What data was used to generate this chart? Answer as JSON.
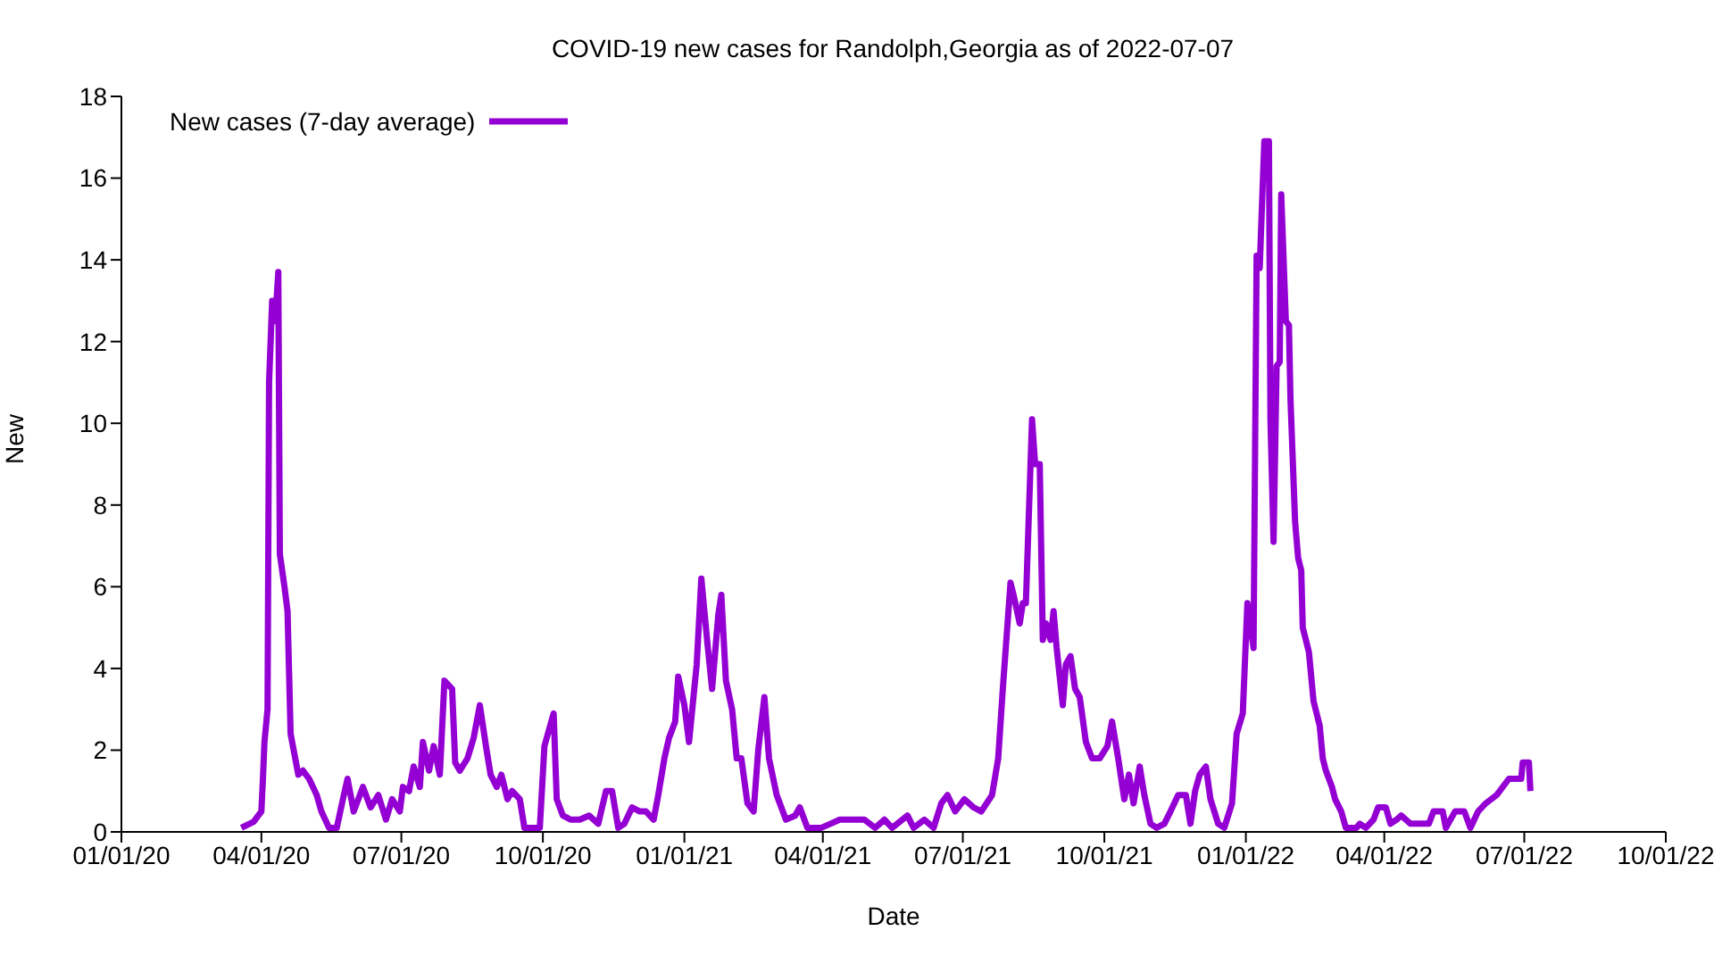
{
  "chart_data": {
    "type": "line",
    "title": "COVID-19 new cases for Randolph,Georgia as of 2022-07-07",
    "xlabel": "Date",
    "ylabel": "New",
    "legend": "top left",
    "grid": false,
    "marker": "none",
    "line_style": "solid",
    "xlim": [
      "2020-01-01",
      "2022-10-01"
    ],
    "xticks": [
      {
        "value": "2020-01-01",
        "label": "01/01/20"
      },
      {
        "value": "2020-04-01",
        "label": "04/01/20"
      },
      {
        "value": "2020-07-01",
        "label": "07/01/20"
      },
      {
        "value": "2020-10-01",
        "label": "10/01/20"
      },
      {
        "value": "2021-01-01",
        "label": "01/01/21"
      },
      {
        "value": "2021-04-01",
        "label": "04/01/21"
      },
      {
        "value": "2021-07-01",
        "label": "07/01/21"
      },
      {
        "value": "2021-10-01",
        "label": "10/01/21"
      },
      {
        "value": "2022-01-01",
        "label": "01/01/22"
      },
      {
        "value": "2022-04-01",
        "label": "04/01/22"
      },
      {
        "value": "2022-07-01",
        "label": "07/01/22"
      },
      {
        "value": "2022-10-01",
        "label": "10/01/22"
      }
    ],
    "ylim": [
      0,
      18
    ],
    "yticks": [
      0,
      2,
      4,
      6,
      8,
      10,
      12,
      14,
      16,
      18
    ],
    "series": [
      {
        "name": "New cases (7-day average)",
        "color": "#9400d3",
        "x": [
          "2020-03-19",
          "2020-03-27",
          "2020-03-30",
          "2020-04-01",
          "2020-04-02",
          "2020-04-03",
          "2020-04-05",
          "2020-04-06",
          "2020-04-08",
          "2020-04-10",
          "2020-04-12",
          "2020-04-13",
          "2020-04-16",
          "2020-04-18",
          "2020-04-20",
          "2020-04-23",
          "2020-04-25",
          "2020-04-28",
          "2020-05-02",
          "2020-05-07",
          "2020-05-10",
          "2020-05-15",
          "2020-05-20",
          "2020-05-24",
          "2020-05-27",
          "2020-05-31",
          "2020-06-06",
          "2020-06-11",
          "2020-06-16",
          "2020-06-21",
          "2020-06-25",
          "2020-06-30",
          "2020-07-02",
          "2020-07-06",
          "2020-07-09",
          "2020-07-13",
          "2020-07-15",
          "2020-07-19",
          "2020-07-22",
          "2020-07-26",
          "2020-07-29",
          "2020-08-03",
          "2020-08-05",
          "2020-08-08",
          "2020-08-13",
          "2020-08-17",
          "2020-08-21",
          "2020-08-25",
          "2020-08-28",
          "2020-09-01",
          "2020-09-04",
          "2020-09-08",
          "2020-09-11",
          "2020-09-16",
          "2020-09-19",
          "2020-09-29",
          "2020-10-02",
          "2020-10-08",
          "2020-10-10",
          "2020-10-14",
          "2020-10-19",
          "2020-10-25",
          "2020-10-31",
          "2020-11-06",
          "2020-11-11",
          "2020-11-15",
          "2020-11-19",
          "2020-11-23",
          "2020-11-28",
          "2020-12-03",
          "2020-12-07",
          "2020-12-12",
          "2020-12-15",
          "2020-12-19",
          "2020-12-22",
          "2020-12-26",
          "2020-12-28",
          "2021-01-01",
          "2021-01-04",
          "2021-01-09",
          "2021-01-12",
          "2021-01-16",
          "2021-01-19",
          "2021-01-23",
          "2021-01-25",
          "2021-01-28",
          "2021-02-01",
          "2021-02-04",
          "2021-02-07",
          "2021-02-11",
          "2021-02-15",
          "2021-02-18",
          "2021-02-22",
          "2021-02-25",
          "2021-03-02",
          "2021-03-08",
          "2021-03-14",
          "2021-03-17",
          "2021-03-22",
          "2021-03-31",
          "2021-04-06",
          "2021-04-12",
          "2021-04-21",
          "2021-04-28",
          "2021-05-05",
          "2021-05-11",
          "2021-05-16",
          "2021-05-26",
          "2021-05-30",
          "2021-06-06",
          "2021-06-12",
          "2021-06-17",
          "2021-06-21",
          "2021-06-26",
          "2021-07-02",
          "2021-07-08",
          "2021-07-13",
          "2021-07-20",
          "2021-07-24",
          "2021-07-27",
          "2021-08-01",
          "2021-08-03",
          "2021-08-07",
          "2021-08-09",
          "2021-08-11",
          "2021-08-15",
          "2021-08-17",
          "2021-08-20",
          "2021-08-22",
          "2021-08-24",
          "2021-08-27",
          "2021-08-29",
          "2021-08-31",
          "2021-09-04",
          "2021-09-06",
          "2021-09-09",
          "2021-09-12",
          "2021-09-15",
          "2021-09-19",
          "2021-09-23",
          "2021-09-28",
          "2021-10-03",
          "2021-10-06",
          "2021-10-10",
          "2021-10-14",
          "2021-10-17",
          "2021-10-20",
          "2021-10-24",
          "2021-10-27",
          "2021-10-31",
          "2021-11-04",
          "2021-11-09",
          "2021-11-13",
          "2021-11-18",
          "2021-11-23",
          "2021-11-26",
          "2021-11-29",
          "2021-12-02",
          "2021-12-06",
          "2021-12-09",
          "2021-12-14",
          "2021-12-18",
          "2021-12-23",
          "2021-12-26",
          "2021-12-30",
          "2022-01-02",
          "2022-01-06",
          "2022-01-08",
          "2022-01-10",
          "2022-01-13",
          "2022-01-16",
          "2022-01-17",
          "2022-01-19",
          "2022-01-21",
          "2022-01-23",
          "2022-01-24",
          "2022-01-27",
          "2022-01-29",
          "2022-01-30",
          "2022-02-02",
          "2022-02-04",
          "2022-02-06",
          "2022-02-07",
          "2022-02-11",
          "2022-02-14",
          "2022-02-18",
          "2022-02-20",
          "2022-02-22",
          "2022-02-26",
          "2022-02-28",
          "2022-03-04",
          "2022-03-07",
          "2022-03-14",
          "2022-03-16",
          "2022-03-20",
          "2022-03-25",
          "2022-03-28",
          "2022-04-02",
          "2022-04-05",
          "2022-04-09",
          "2022-04-12",
          "2022-04-18",
          "2022-04-30",
          "2022-05-03",
          "2022-05-09",
          "2022-05-11",
          "2022-05-17",
          "2022-05-23",
          "2022-05-27",
          "2022-06-01",
          "2022-06-06",
          "2022-06-13",
          "2022-06-21",
          "2022-06-29",
          "2022-06-30",
          "2022-07-04",
          "2022-07-05"
        ],
        "values": [
          0.1,
          0.25,
          0.4,
          0.5,
          1.3,
          2.2,
          3,
          11,
          13,
          12.5,
          13.7,
          6.8,
          6,
          5.4,
          2.4,
          1.8,
          1.4,
          1.5,
          1.3,
          0.9,
          0.5,
          0.1,
          0.1,
          0.8,
          1.3,
          0.5,
          1.1,
          0.6,
          0.9,
          0.3,
          0.8,
          0.5,
          1.1,
          1,
          1.6,
          1.1,
          2.2,
          1.5,
          2.1,
          1.4,
          3.7,
          3.5,
          1.7,
          1.5,
          1.8,
          2.3,
          3.1,
          2.1,
          1.4,
          1.1,
          1.4,
          0.8,
          1,
          0.8,
          0.1,
          0.1,
          2.1,
          2.9,
          0.8,
          0.4,
          0.3,
          0.3,
          0.4,
          0.2,
          1,
          1,
          0.1,
          0.2,
          0.6,
          0.5,
          0.5,
          0.3,
          0.9,
          1.8,
          2.3,
          2.7,
          3.8,
          3.1,
          2.2,
          4.1,
          6.2,
          4.6,
          3.5,
          5.3,
          5.8,
          3.7,
          3,
          1.8,
          1.8,
          0.7,
          0.5,
          2,
          3.3,
          1.8,
          0.9,
          0.3,
          0.4,
          0.6,
          0.1,
          0.1,
          0.2,
          0.3,
          0.3,
          0.3,
          0.1,
          0.3,
          0.1,
          0.4,
          0.1,
          0.3,
          0.1,
          0.7,
          0.9,
          0.5,
          0.8,
          0.6,
          0.5,
          0.9,
          1.8,
          3.5,
          6.1,
          5.8,
          5.1,
          5.6,
          5.6,
          10.1,
          9,
          9,
          4.7,
          5.1,
          4.7,
          5.4,
          4.5,
          3.1,
          4.1,
          4.3,
          3.5,
          3.3,
          2.2,
          1.8,
          1.8,
          2.1,
          2.7,
          1.8,
          0.8,
          1.4,
          0.7,
          1.6,
          0.9,
          0.2,
          0.1,
          0.2,
          0.5,
          0.9,
          0.9,
          0.2,
          1,
          1.4,
          1.6,
          0.8,
          0.2,
          0.1,
          0.7,
          2.4,
          2.9,
          5.6,
          4.5,
          14.1,
          13.8,
          16.9,
          16.9,
          10.1,
          7.1,
          11.4,
          11.5,
          15.6,
          12.5,
          12.4,
          10.6,
          7.6,
          6.7,
          6.4,
          5,
          4.4,
          3.2,
          2.6,
          1.8,
          1.5,
          1.1,
          0.8,
          0.5,
          0.1,
          0.1,
          0.2,
          0.1,
          0.3,
          0.6,
          0.6,
          0.2,
          0.3,
          0.4,
          0.2,
          0.2,
          0.5,
          0.5,
          0.1,
          0.5,
          0.5,
          0.1,
          0.5,
          0.7,
          0.9,
          1.3,
          1.3,
          1.7,
          1.7,
          1
        ]
      }
    ]
  }
}
